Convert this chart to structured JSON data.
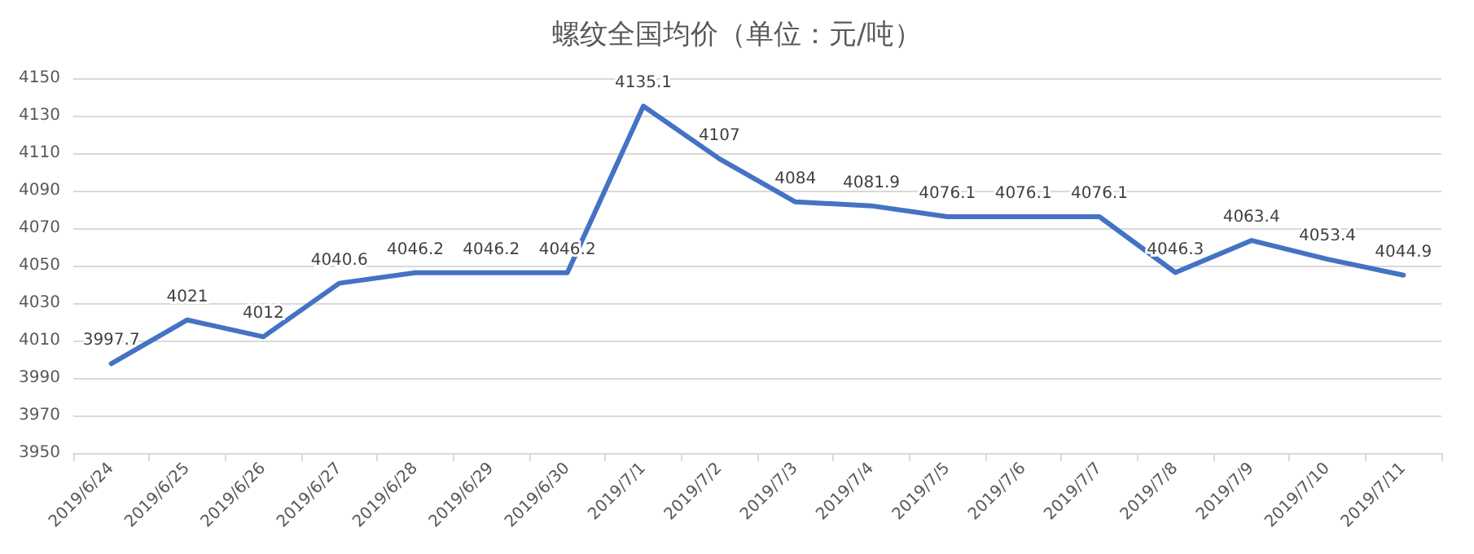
{
  "chart_data": {
    "type": "line",
    "title": "螺纹全国均价（单位：元/吨）",
    "categories": [
      "2019/6/24",
      "2019/6/25",
      "2019/6/26",
      "2019/6/27",
      "2019/6/28",
      "2019/6/29",
      "2019/6/30",
      "2019/7/1",
      "2019/7/2",
      "2019/7/3",
      "2019/7/4",
      "2019/7/5",
      "2019/7/6",
      "2019/7/7",
      "2019/7/8",
      "2019/7/9",
      "2019/7/10",
      "2019/7/11"
    ],
    "values": [
      3997.7,
      4021,
      4012,
      4040.6,
      4046.2,
      4046.2,
      4046.2,
      4135.1,
      4107,
      4084,
      4081.9,
      4076.1,
      4076.1,
      4076.1,
      4046.3,
      4063.4,
      4053.4,
      4044.9
    ],
    "color": "#4472c4",
    "ylim": [
      3950,
      4150
    ],
    "yticks": [
      3950,
      3970,
      3990,
      4010,
      4030,
      4050,
      4070,
      4090,
      4110,
      4130,
      4150
    ],
    "grid": "y",
    "data_labels": true,
    "marker": "none",
    "line_style": "solid"
  }
}
